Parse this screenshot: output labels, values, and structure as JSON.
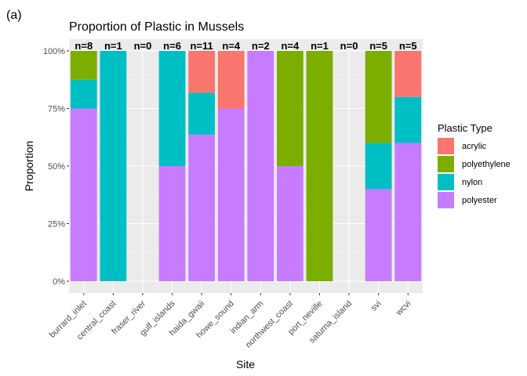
{
  "panel_tag": "(a)",
  "chart_data": {
    "type": "bar",
    "stacked": true,
    "title": "Proportion of Plastic in Mussels",
    "xlabel": "Site",
    "ylabel": "Proportion",
    "ylim": [
      0,
      1
    ],
    "y_ticks": [
      {
        "value": 0,
        "label": "0%"
      },
      {
        "value": 0.25,
        "label": "25%"
      },
      {
        "value": 0.5,
        "label": "50%"
      },
      {
        "value": 0.75,
        "label": "75%"
      },
      {
        "value": 1,
        "label": "100%"
      }
    ],
    "categories": [
      "burrard_inlet",
      "central_coast",
      "fraser_river",
      "gulf_islands",
      "haida_gwaii",
      "howe_sound",
      "indian_arm",
      "northwest_coast",
      "port_neville",
      "saturna_island",
      "svi",
      "wcvi"
    ],
    "n_labels": [
      "n=8",
      "n=1",
      "n=0",
      "n=6",
      "n=11",
      "n=4",
      "n=2",
      "n=4",
      "n=1",
      "n=0",
      "n=5",
      "n=5"
    ],
    "legend_title": "Plastic Type",
    "legend_position": "right",
    "series": [
      {
        "name": "acrylic",
        "color": "#F8766D",
        "values": [
          0,
          0,
          0,
          0,
          0.1818,
          0.25,
          0,
          0,
          0,
          0,
          0,
          0.2
        ]
      },
      {
        "name": "polyethylene",
        "color": "#7CAE00",
        "values": [
          0.125,
          0,
          0,
          0,
          0,
          0,
          0,
          0.5,
          1,
          0,
          0.4,
          0
        ]
      },
      {
        "name": "nylon",
        "color": "#00BFC4",
        "values": [
          0.125,
          1,
          0,
          0.5,
          0.1818,
          0,
          0,
          0,
          0,
          0,
          0.2,
          0.2
        ]
      },
      {
        "name": "polyester",
        "color": "#C77CFF",
        "values": [
          0.75,
          0,
          0,
          0.5,
          0.6364,
          0.75,
          1,
          0.5,
          0,
          0,
          0.4,
          0.6
        ]
      }
    ]
  }
}
